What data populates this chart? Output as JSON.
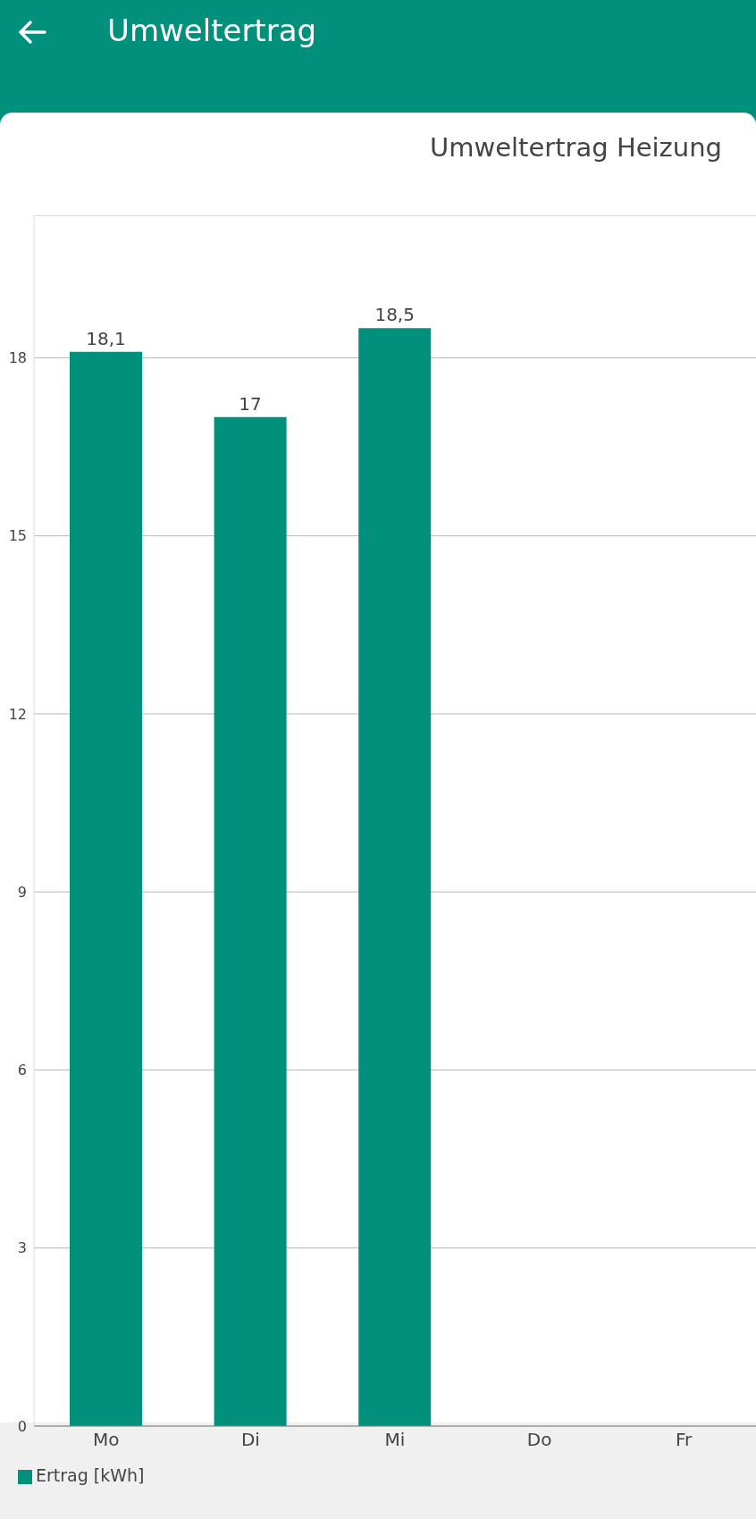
{
  "chart_data": {
    "type": "bar",
    "title": "Umweltertrag Heizung",
    "annotations": [
      "Umweltertrag"
    ],
    "categories": [
      "Mo",
      "Di",
      "Mi",
      "Do",
      "Fr"
    ],
    "series": [
      {
        "name": "Ertrag [kWh]",
        "color": "#00907c",
        "values": [
          18.1,
          17,
          18.5,
          null,
          null
        ],
        "value_labels": [
          "18,1",
          "17",
          "18,5",
          null,
          null
        ]
      }
    ],
    "ylim": [
      0,
      20.4
    ],
    "yticks": [
      0,
      3,
      6,
      9,
      12,
      15,
      18
    ],
    "grid": "y",
    "legend": "bottom left"
  }
}
